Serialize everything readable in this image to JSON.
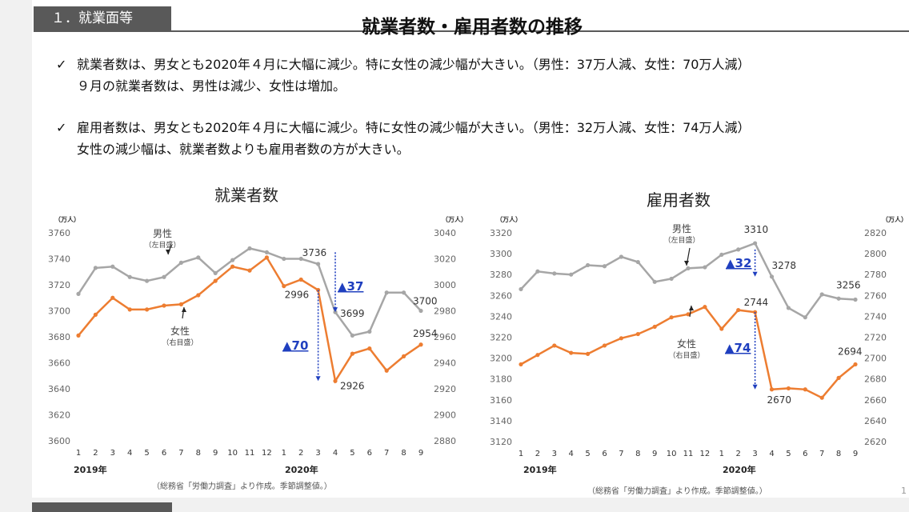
{
  "section_tab": "１．就業面等",
  "title": "就業者数・雇用者数の推移",
  "bullets": [
    {
      "check": "✓",
      "line1": "就業者数は、男女とも2020年４月に大幅に減少。特に女性の減少幅が大きい。（男性：37万人減、女性：70万人減）",
      "line2": "９月の就業者数は、男性は減少、女性は増加。"
    },
    {
      "check": "✓",
      "line1": "雇用者数は、男女とも2020年４月に大幅に減少。特に女性の減少幅が大きい。（男性：32万人減、女性：74万人減）",
      "line2": "女性の減少幅は、就業者数よりも雇用者数の方が大きい。"
    }
  ],
  "source_note": "（総務省「労働力調査」より作成。季節調整値。）",
  "page_number": "1",
  "colors": {
    "male": "#a6a6a6",
    "female": "#ed7d31",
    "annotation": "#1f3fbf",
    "dark": "#595959"
  },
  "chart_data": [
    {
      "type": "line",
      "title": "就業者数",
      "x": [
        "1",
        "2",
        "3",
        "4",
        "5",
        "6",
        "7",
        "8",
        "9",
        "10",
        "11",
        "12",
        "1",
        "2",
        "3",
        "4",
        "5",
        "6",
        "7",
        "8",
        "9"
      ],
      "year_labels": [
        "2019年",
        "2020年"
      ],
      "left_unit": "（万人）",
      "right_unit": "（万人）",
      "left_axis": {
        "min": 3600,
        "max": 3760,
        "step": 20
      },
      "right_axis": {
        "min": 2880,
        "max": 3040,
        "step": 20
      },
      "series": [
        {
          "name": "男性",
          "sub": "（左目盛）",
          "axis": "left",
          "values": [
            3713,
            3733,
            3734,
            3726,
            3723,
            3726,
            3737,
            3741,
            3729,
            3739,
            3748,
            3745,
            3740,
            3740,
            3736,
            3699,
            3681,
            3684,
            3714,
            3714,
            3700
          ]
        },
        {
          "name": "女性",
          "sub": "（右目盛）",
          "axis": "right",
          "values": [
            2961,
            2977,
            2990,
            2981,
            2981,
            2984,
            2985,
            2992,
            3003,
            3014,
            3011,
            3021,
            2999,
            3004,
            2996,
            2926,
            2947,
            2951,
            2934,
            2945,
            2954
          ]
        }
      ],
      "data_labels": [
        "3736",
        "3699",
        "3700",
        "2996",
        "2926",
        "2954"
      ],
      "change_annotations": [
        "▲37",
        "▲70"
      ]
    },
    {
      "type": "line",
      "title": "雇用者数",
      "x": [
        "1",
        "2",
        "3",
        "4",
        "5",
        "6",
        "7",
        "8",
        "9",
        "10",
        "11",
        "12",
        "1",
        "2",
        "3",
        "4",
        "5",
        "6",
        "7",
        "8",
        "9"
      ],
      "year_labels": [
        "2019年",
        "2020年"
      ],
      "left_unit": "（万人）",
      "right_unit": "（万人）",
      "left_axis": {
        "min": 3120,
        "max": 3320,
        "step": 20
      },
      "right_axis": {
        "min": 2620,
        "max": 2820,
        "step": 20
      },
      "series": [
        {
          "name": "男性",
          "sub": "（左目盛）",
          "axis": "left",
          "values": [
            3266,
            3283,
            3281,
            3280,
            3289,
            3288,
            3297,
            3292,
            3273,
            3276,
            3286,
            3287,
            3299,
            3304,
            3310,
            3278,
            3248,
            3239,
            3261,
            3257,
            3256
          ]
        },
        {
          "name": "女性",
          "sub": "（右目盛）",
          "axis": "right",
          "values": [
            2694,
            2703,
            2712,
            2705,
            2704,
            2712,
            2719,
            2723,
            2730,
            2739,
            2742,
            2749,
            2728,
            2746,
            2744,
            2670,
            2671,
            2670,
            2662,
            2681,
            2694
          ]
        }
      ],
      "data_labels": [
        "3310",
        "3278",
        "3256",
        "2744",
        "2670",
        "2694"
      ],
      "change_annotations": [
        "▲32",
        "▲74"
      ]
    }
  ]
}
